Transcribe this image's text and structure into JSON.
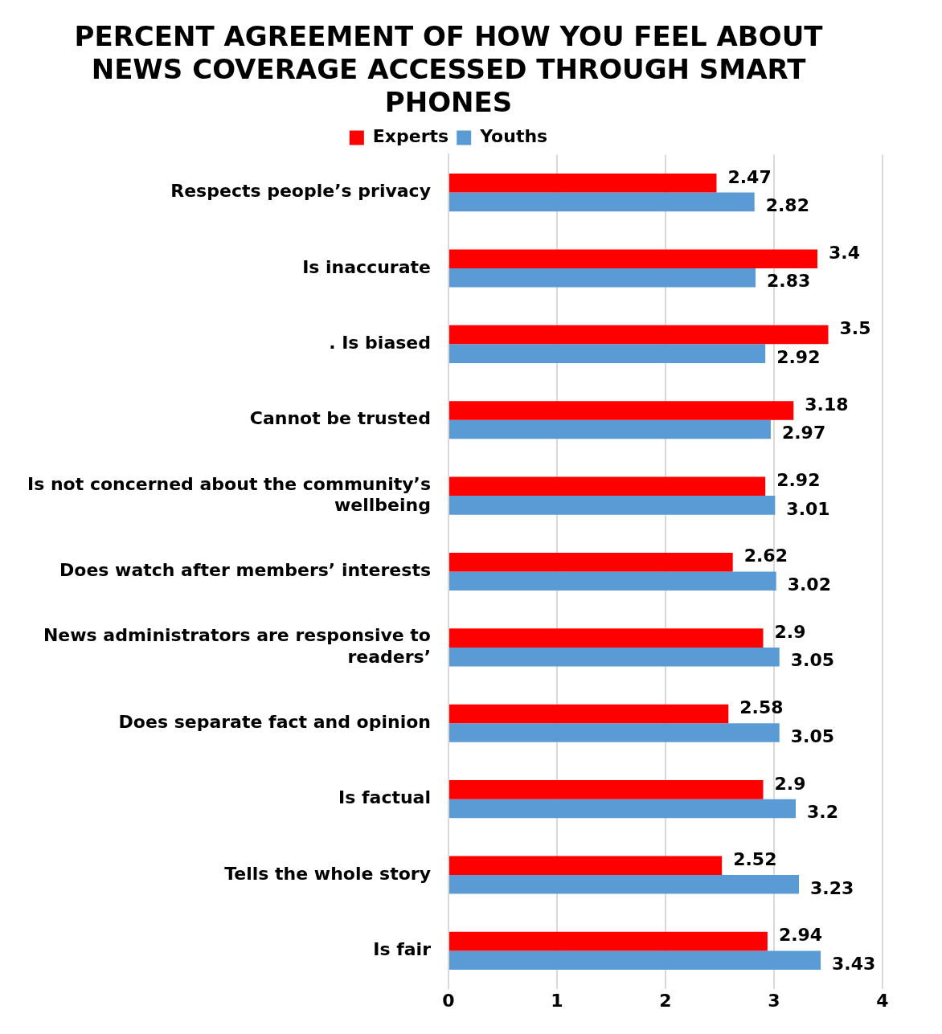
{
  "chart_data": {
    "type": "bar",
    "orientation": "horizontal",
    "title": "PERCENT AGREEMENT OF HOW YOU FEEL ABOUT NEWS COVERAGE ACCESSED THROUGH SMART PHONES",
    "categories": [
      "Respects people’s privacy",
      "Is inaccurate",
      ". Is biased",
      "Cannot be trusted",
      "Is not concerned about the community’s wellbeing",
      "Does watch after members’ interests",
      "News administrators are responsive to readers’",
      "Does separate fact and opinion",
      "Is factual",
      "Tells the whole story",
      "Is fair"
    ],
    "series": [
      {
        "name": "Experts",
        "color": "#ff0000",
        "values": [
          2.47,
          3.4,
          3.5,
          3.18,
          2.92,
          2.62,
          2.9,
          2.58,
          2.9,
          2.52,
          2.94
        ]
      },
      {
        "name": "Youths",
        "color": "#5b9bd5",
        "values": [
          2.82,
          2.83,
          2.92,
          2.97,
          3.01,
          3.02,
          3.05,
          3.05,
          3.2,
          3.23,
          3.43
        ]
      }
    ],
    "xlim": [
      0,
      4
    ],
    "xticks": [
      0,
      1,
      2,
      3,
      4
    ],
    "grid": "x",
    "legend": "top",
    "data_labels": true
  }
}
